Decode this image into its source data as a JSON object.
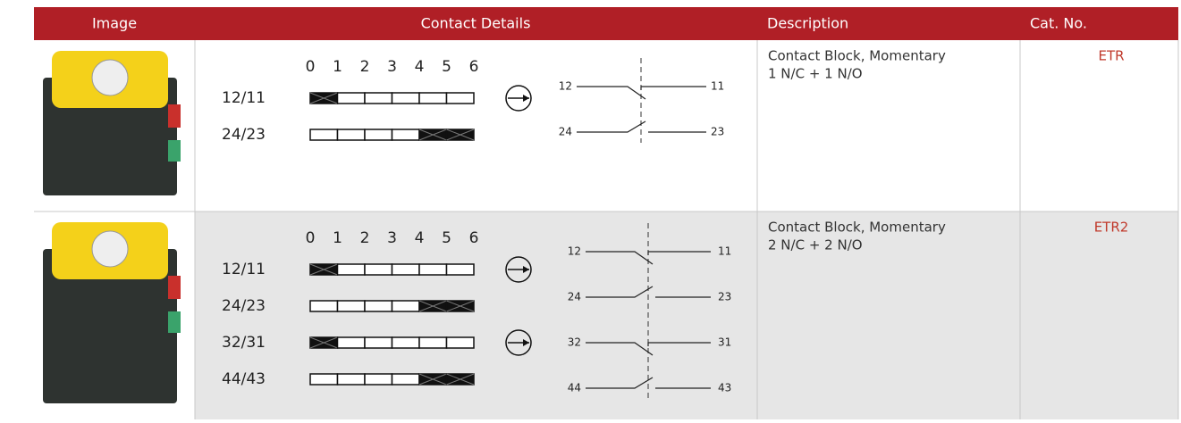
{
  "header": {
    "columns": [
      "Image",
      "Contact Details",
      "Description",
      "Cat. No."
    ]
  },
  "rows": [
    {
      "positions": [
        "0",
        "1",
        "2",
        "3",
        "4",
        "5",
        "6"
      ],
      "contacts": [
        {
          "label": "12/11",
          "terminals": [
            "12",
            "11"
          ]
        },
        {
          "label": "24/23",
          "terminals": [
            "24",
            "23"
          ]
        }
      ],
      "description": [
        "Contact Block, Momentary",
        "1 N/C + 1 N/O"
      ],
      "cat_no": "ETR"
    },
    {
      "positions": [
        "0",
        "1",
        "2",
        "3",
        "4",
        "5",
        "6"
      ],
      "contacts": [
        {
          "label": "12/11",
          "terminals": [
            "12",
            "11"
          ]
        },
        {
          "label": "24/23",
          "terminals": [
            "24",
            "23"
          ]
        },
        {
          "label": "32/31",
          "terminals": [
            "32",
            "31"
          ]
        },
        {
          "label": "44/43",
          "terminals": [
            "44",
            "43"
          ]
        }
      ],
      "description": [
        "Contact Block, Momentary",
        "2 N/C + 2 N/O"
      ],
      "cat_no": "ETR2"
    }
  ]
}
